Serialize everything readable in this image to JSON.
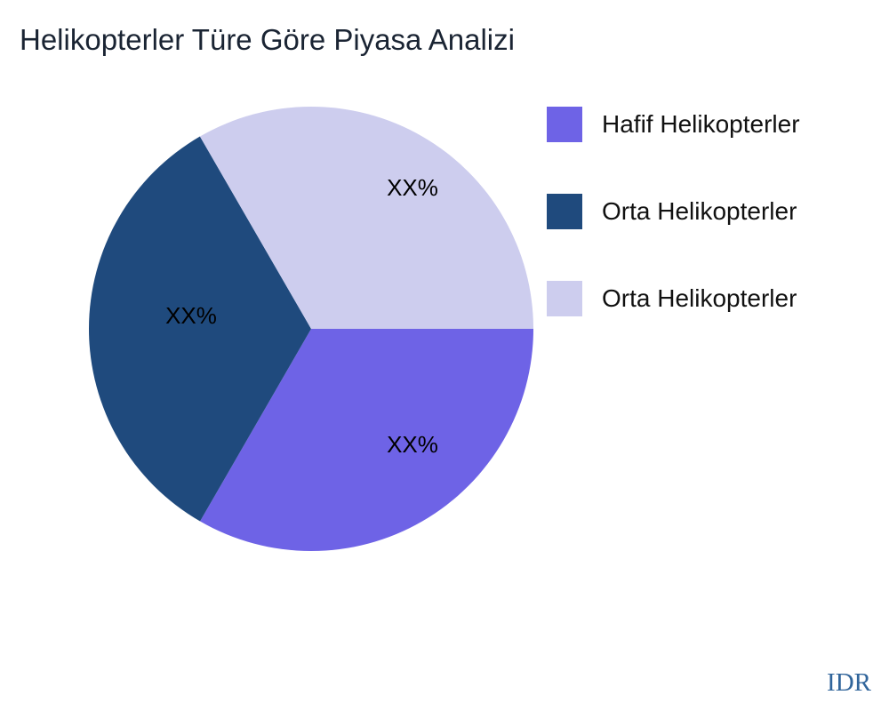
{
  "title": "Helikopterler Türe Göre Piyasa Analizi",
  "watermark": "IDR",
  "chart_data": {
    "type": "pie",
    "title": "Helikopterler Türe Göre Piyasa Analizi",
    "start_angle_deg": 0,
    "direction": "clockwise",
    "legend_position": "right",
    "slices": [
      {
        "label": "Hafif Helikopterler",
        "value": 33.33,
        "pct_label": "XX%",
        "color": "#6e63e6"
      },
      {
        "label": "Orta Helikopterler",
        "value": 33.33,
        "pct_label": "XX%",
        "color": "#1f4a7d"
      },
      {
        "label": "Orta Helikopterler",
        "value": 33.34,
        "pct_label": "XX%",
        "color": "#cdcdee"
      }
    ]
  }
}
